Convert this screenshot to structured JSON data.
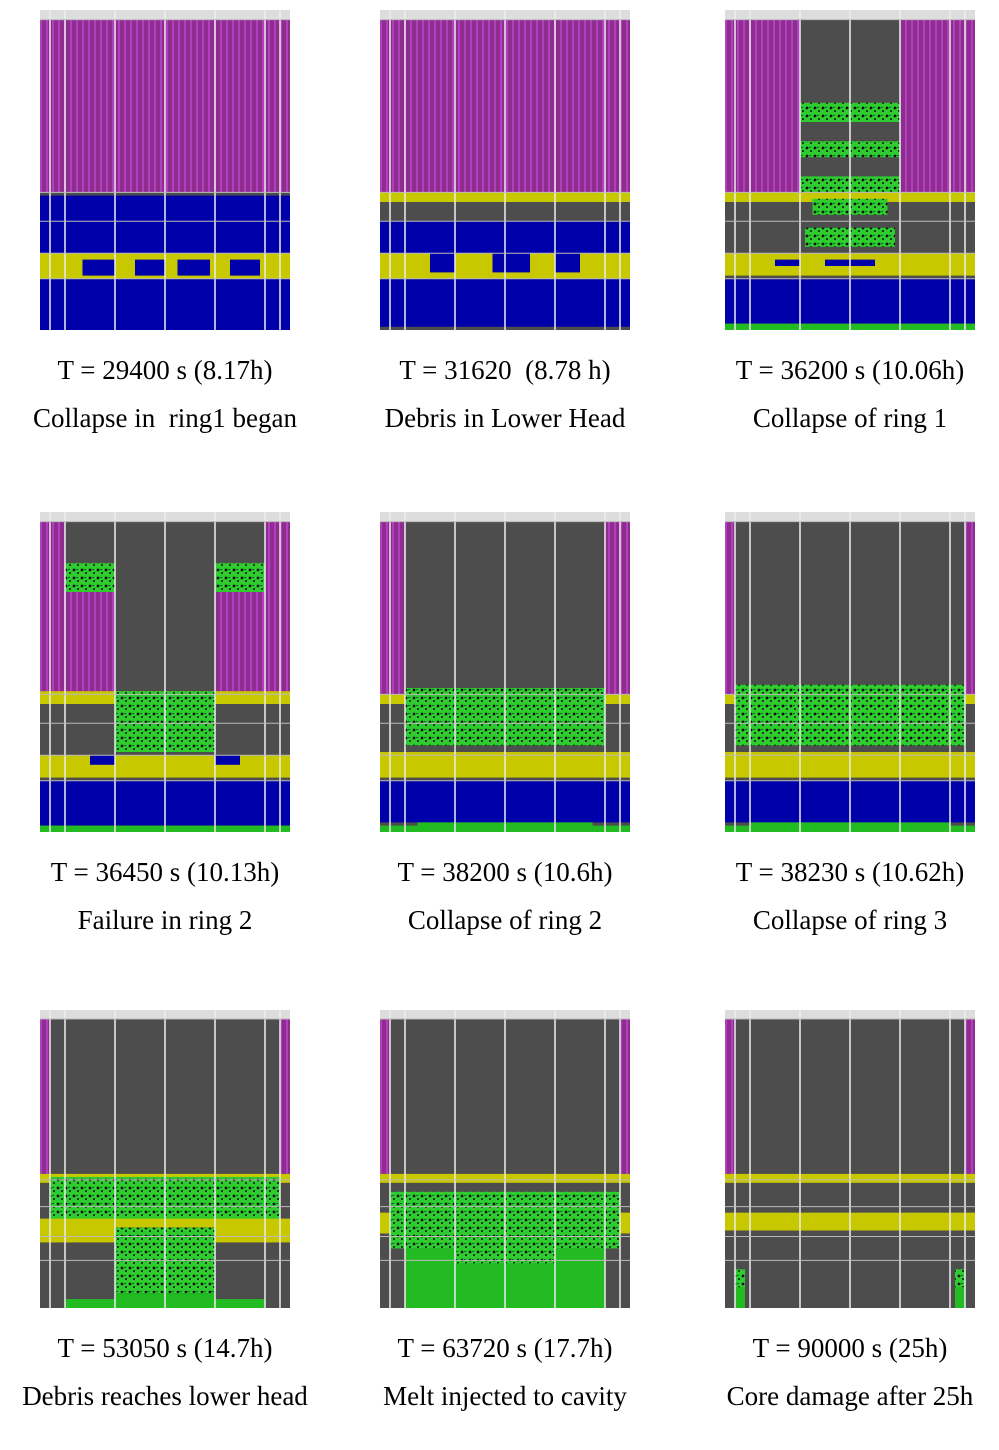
{
  "figure": {
    "panels": [
      {
        "time": "T = 29400 s (8.17h)",
        "caption": "Collapse in  ring1 began"
      },
      {
        "time": "T = 31620  (8.78 h)",
        "caption": "Debris in Lower Head"
      },
      {
        "time": "T = 36200 s (10.06h)",
        "caption": "Collapse of ring 1"
      },
      {
        "time": "T = 36450 s (10.13h)",
        "caption": "Failure in ring 2"
      },
      {
        "time": "T = 38200 s (10.6h)",
        "caption": "Collapse of ring 2"
      },
      {
        "time": "T = 38230 s (10.62h)",
        "caption": "Collapse of ring 3"
      },
      {
        "time": "T = 53050 s (14.7h)",
        "caption": "Debris reaches lower head"
      },
      {
        "time": "T = 63720 s (17.7h)",
        "caption": "Melt injected to cavity"
      },
      {
        "time": "T = 90000 s (25h)",
        "caption": "Core damage after 25h"
      }
    ]
  }
}
